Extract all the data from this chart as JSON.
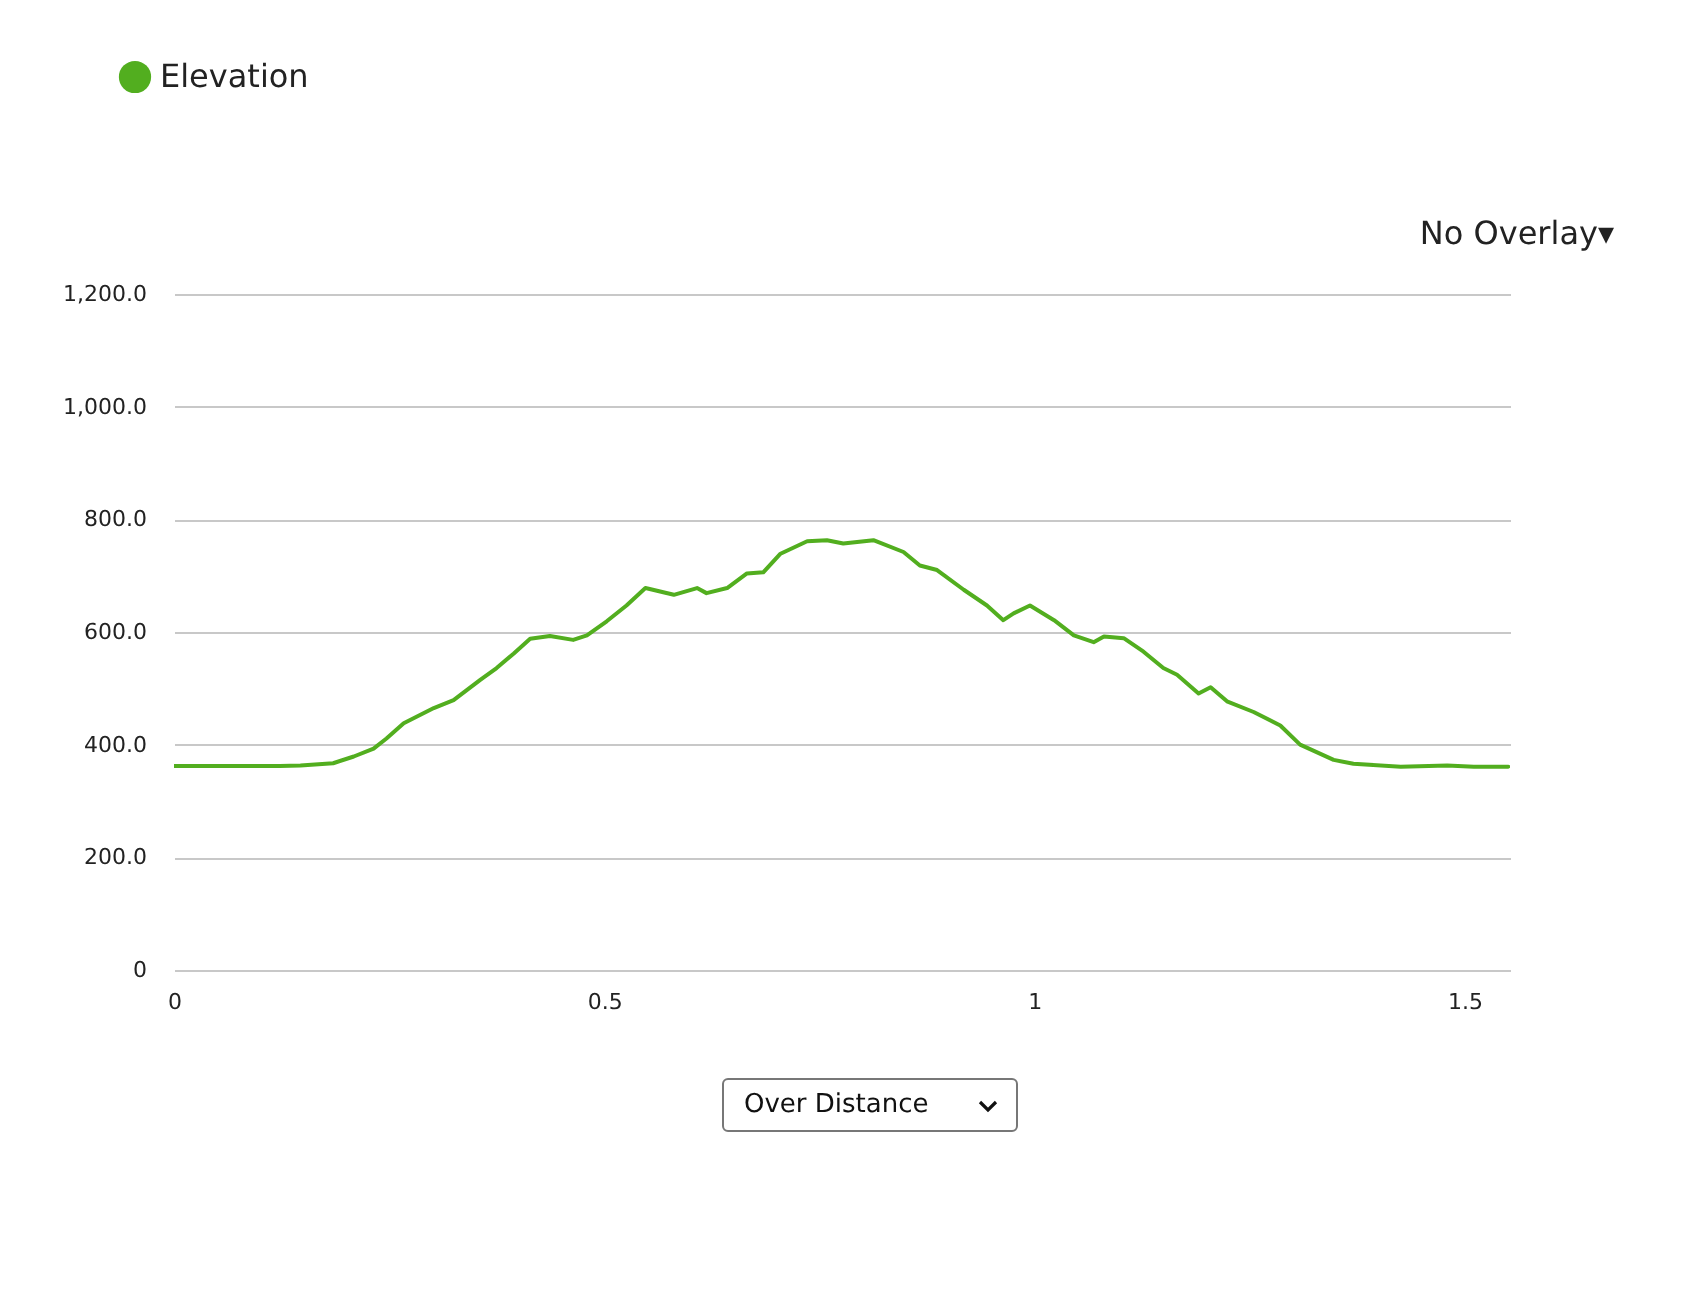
{
  "chart_data": {
    "type": "line",
    "x": [
      0,
      0.123,
      0.147,
      0.185,
      0.209,
      0.232,
      0.247,
      0.267,
      0.302,
      0.325,
      0.356,
      0.375,
      0.395,
      0.414,
      0.437,
      0.464,
      0.48,
      0.503,
      0.526,
      0.548,
      0.581,
      0.608,
      0.619,
      0.643,
      0.666,
      0.685,
      0.705,
      0.736,
      0.759,
      0.778,
      0.813,
      0.848,
      0.867,
      0.887,
      0.918,
      0.945,
      0.964,
      0.976,
      0.995,
      1.023,
      1.046,
      1.069,
      1.081,
      1.104,
      1.127,
      1.15,
      1.166,
      1.191,
      1.205,
      1.224,
      1.255,
      1.286,
      1.309,
      1.348,
      1.371,
      1.426,
      1.48,
      1.511,
      1.551
    ],
    "series": [
      {
        "name": "Elevation",
        "color": "#52ae1f",
        "values": [
          362,
          362,
          363,
          367,
          379,
          393,
          411,
          438,
          465,
          479,
          515,
          536,
          562,
          588,
          593,
          586,
          594,
          619,
          647,
          678,
          666,
          678,
          669,
          678,
          704,
          706,
          739,
          761,
          763,
          757,
          763,
          742,
          718,
          710,
          675,
          647,
          621,
          633,
          647,
          621,
          594,
          582,
          592,
          589,
          565,
          536,
          524,
          491,
          502,
          477,
          458,
          434,
          400,
          373,
          366,
          361,
          363,
          361,
          361
        ]
      }
    ],
    "xlim": [
      0,
      1.553
    ],
    "xticks": [
      0,
      0.5,
      1,
      1.5
    ],
    "ylim": [
      0,
      1200
    ],
    "yticks": [
      0,
      {
        "value": 200,
        "label": "200.0"
      },
      {
        "value": 400,
        "label": "400.0"
      },
      {
        "value": 600,
        "label": "600.0"
      },
      {
        "value": 800,
        "label": "800.0"
      },
      {
        "value": 1000,
        "label": "1,000.0"
      },
      {
        "value": 1200,
        "label": "1,200.0"
      }
    ],
    "grid": "y",
    "legend": "top left",
    "marker": "none",
    "line_style": "solid",
    "annotations": [
      "No Overlay▾",
      "Over Distance"
    ]
  }
}
